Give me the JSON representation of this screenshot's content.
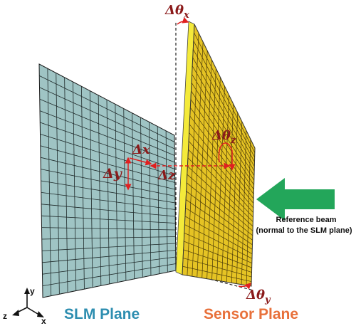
{
  "labels": {
    "delta": "Δ",
    "theta": "θ",
    "theta_x_sub": "x",
    "theta_y_sub": "y",
    "theta_z_sub": "z",
    "dx": "Δx",
    "dy": "Δy",
    "dz": "Δz",
    "beam_line1": "Reference beam",
    "beam_line2": "(normal to the SLM plane)",
    "slm_plane": "SLM Plane",
    "sensor_plane": "Sensor Plane",
    "axis_x": "x",
    "axis_y": "y",
    "axis_z": "z"
  },
  "colors": {
    "slm_fill": "#9fc4c4",
    "sensor_fill": "#e5c324",
    "sensor_edge": "#f4ea3a",
    "arrow": "#23a65a",
    "red": "#e02020",
    "math": "#8b1a1a",
    "slm_text": "#2e8eb0",
    "sensor_text": "#e8703a"
  }
}
